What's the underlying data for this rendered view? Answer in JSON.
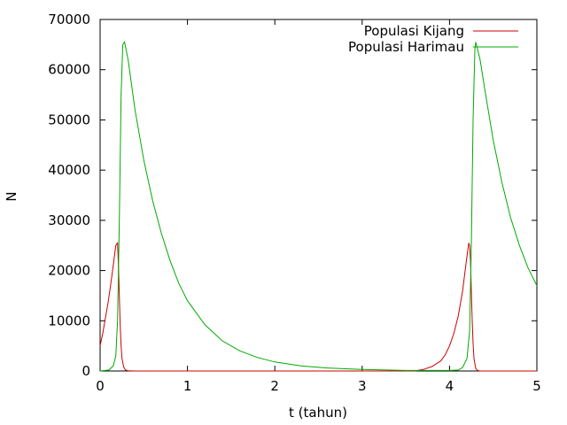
{
  "chart_data": {
    "type": "line",
    "xlabel": "t (tahun)",
    "ylabel": "N",
    "xlim": [
      0,
      5
    ],
    "ylim": [
      0,
      70000
    ],
    "xticks": [
      0,
      1,
      2,
      3,
      4,
      5
    ],
    "yticks": [
      0,
      10000,
      20000,
      30000,
      40000,
      50000,
      60000,
      70000
    ],
    "grid": false,
    "legend_position": "top-right",
    "series": [
      {
        "name": "Populasi Kijang",
        "color": "#cc0000",
        "x": [
          0,
          0.03,
          0.06,
          0.09,
          0.12,
          0.15,
          0.18,
          0.2,
          0.21,
          0.22,
          0.23,
          0.24,
          0.25,
          0.27,
          0.29,
          0.32,
          0.4,
          1.0,
          2.0,
          3.0,
          3.4,
          3.6,
          3.7,
          3.8,
          3.9,
          3.95,
          4.0,
          4.05,
          4.1,
          4.15,
          4.19,
          4.22,
          4.23,
          4.24,
          4.25,
          4.26,
          4.27,
          4.28,
          4.3,
          4.32,
          4.35,
          4.4,
          5.0
        ],
        "y": [
          5000,
          7500,
          10500,
          13500,
          17000,
          21000,
          25000,
          25500,
          21000,
          15000,
          9000,
          5000,
          2500,
          800,
          200,
          50,
          0,
          0,
          0,
          0,
          0,
          0,
          300,
          900,
          2000,
          3200,
          5000,
          7500,
          11000,
          16000,
          21500,
          25500,
          25000,
          22000,
          16000,
          10000,
          5500,
          2500,
          500,
          100,
          0,
          0,
          0
        ]
      },
      {
        "name": "Populasi Harimau",
        "color": "#00aa00",
        "x": [
          0,
          0.1,
          0.15,
          0.18,
          0.2,
          0.22,
          0.24,
          0.26,
          0.28,
          0.32,
          0.4,
          0.5,
          0.6,
          0.7,
          0.8,
          0.9,
          1.0,
          1.2,
          1.4,
          1.6,
          1.8,
          2.0,
          2.3,
          2.6,
          3.0,
          3.5,
          4.0,
          4.1,
          4.15,
          4.2,
          4.23,
          4.25,
          4.27,
          4.29,
          4.3,
          4.35,
          4.4,
          4.5,
          4.6,
          4.7,
          4.8,
          4.9,
          5.0
        ],
        "y": [
          0,
          200,
          1000,
          3000,
          10000,
          30000,
          55000,
          65000,
          65500,
          62000,
          52000,
          42000,
          34000,
          27500,
          22000,
          17500,
          14000,
          9200,
          6000,
          4000,
          2700,
          1800,
          1000,
          600,
          300,
          100,
          100,
          200,
          700,
          2500,
          8000,
          25000,
          50000,
          64000,
          65500,
          62000,
          56500,
          46000,
          37500,
          30500,
          25000,
          20500,
          17000
        ]
      }
    ]
  }
}
